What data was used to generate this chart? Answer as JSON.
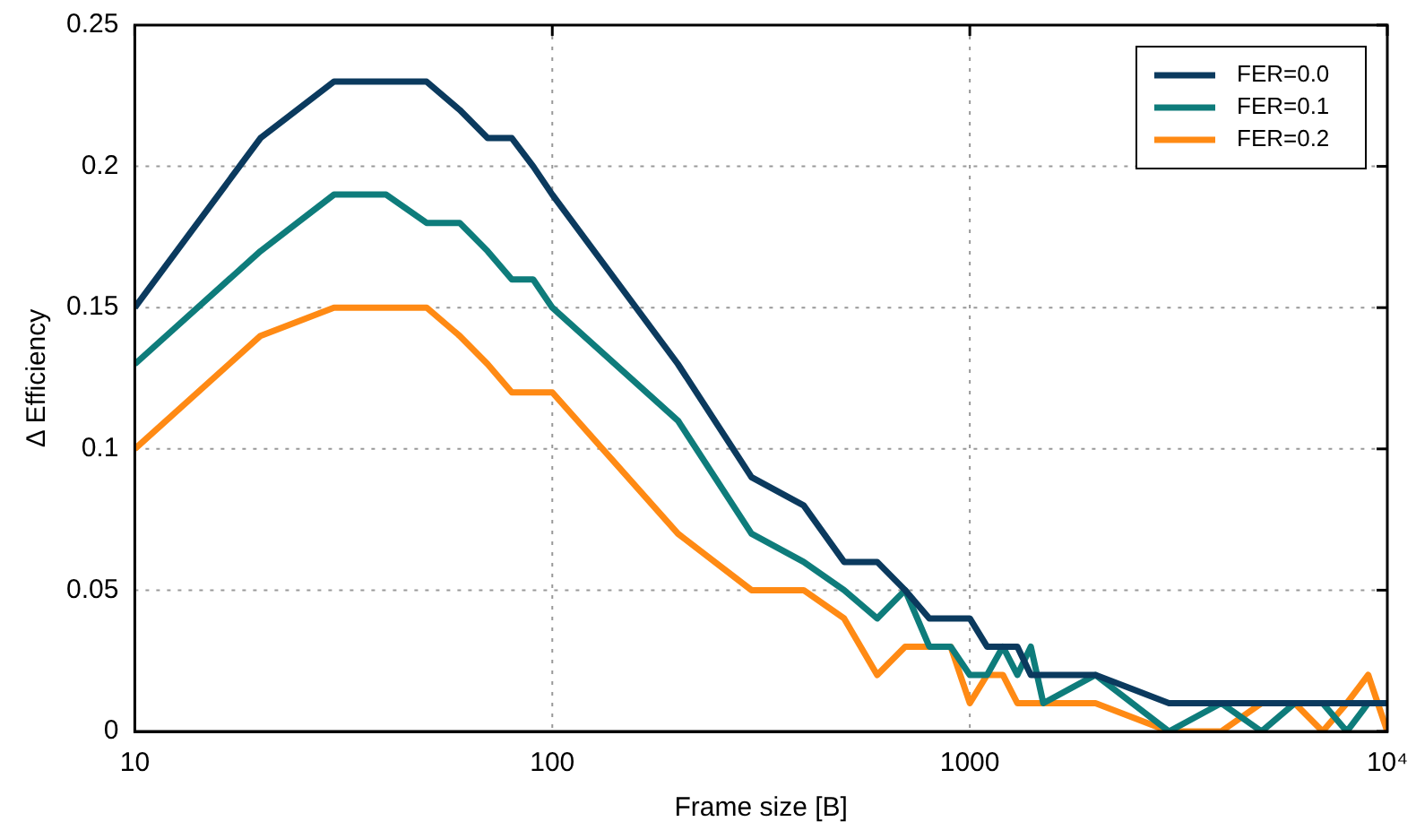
{
  "chart_data": {
    "type": "line",
    "xlabel": "Frame size [B]",
    "ylabel": "Δ Efficiency",
    "x": [
      10,
      20,
      30,
      40,
      50,
      60,
      70,
      80,
      90,
      100,
      200,
      300,
      400,
      500,
      600,
      700,
      800,
      900,
      1000,
      1100,
      1200,
      1300,
      1400,
      1500,
      2000,
      3000,
      4000,
      5000,
      6000,
      7000,
      8000,
      9000,
      10000
    ],
    "series": [
      {
        "name": "FER=0.0",
        "color": "#0b3a5e",
        "values": [
          0.15,
          0.21,
          0.23,
          0.23,
          0.23,
          0.22,
          0.21,
          0.21,
          0.2,
          0.19,
          0.13,
          0.09,
          0.08,
          0.06,
          0.06,
          0.05,
          0.04,
          0.04,
          0.04,
          0.03,
          0.03,
          0.03,
          0.02,
          0.02,
          0.02,
          0.01,
          0.01,
          0.01,
          0.01,
          0.01,
          0.01,
          0.01,
          0.01
        ]
      },
      {
        "name": "FER=0.1",
        "color": "#0e7c7b",
        "values": [
          0.13,
          0.17,
          0.19,
          0.19,
          0.18,
          0.18,
          0.17,
          0.16,
          0.16,
          0.15,
          0.11,
          0.07,
          0.06,
          0.05,
          0.04,
          0.05,
          0.03,
          0.03,
          0.02,
          0.02,
          0.03,
          0.02,
          0.03,
          0.01,
          0.02,
          0,
          0.01,
          0,
          0.01,
          0.01,
          0,
          0.01,
          0.01
        ]
      },
      {
        "name": "FER=0.2",
        "color": "#ff8a14",
        "values": [
          0.1,
          0.14,
          0.15,
          0.15,
          0.15,
          0.14,
          0.13,
          0.12,
          0.12,
          0.12,
          0.07,
          0.05,
          0.05,
          0.04,
          0.02,
          0.03,
          0.03,
          0.03,
          0.01,
          0.02,
          0.02,
          0.01,
          0.01,
          0.01,
          0.01,
          0,
          0,
          0.01,
          0.01,
          0,
          0.01,
          0.02,
          0
        ]
      }
    ],
    "log": "x",
    "xlim": [
      10,
      10000
    ],
    "xticks": [
      10,
      100,
      1000,
      {
        "value": 10000,
        "label": "10⁴"
      }
    ],
    "ylim": [
      0,
      0.25
    ],
    "yticks": [
      0,
      0.05,
      0.1,
      0.15,
      0.2,
      0.25
    ],
    "grid": true,
    "legend": "top right",
    "line_style": "solid",
    "marker": "none"
  }
}
